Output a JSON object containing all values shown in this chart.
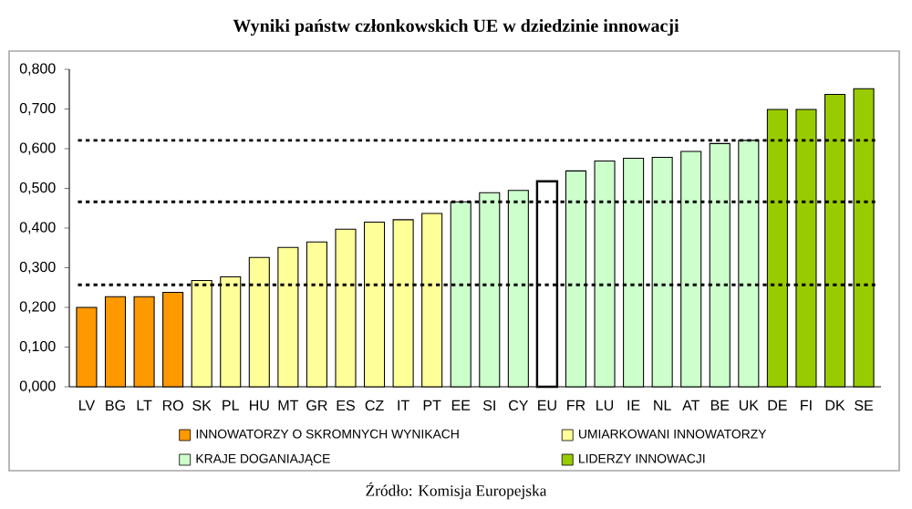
{
  "chart_data": {
    "type": "bar",
    "title": "Wyniki państw członkowskich UE w dziedzinie innowacji",
    "categories": [
      "LV",
      "BG",
      "LT",
      "RO",
      "SK",
      "PL",
      "HU",
      "MT",
      "GR",
      "ES",
      "CZ",
      "IT",
      "PT",
      "EE",
      "SI",
      "CY",
      "EU",
      "FR",
      "LU",
      "IE",
      "NL",
      "AT",
      "BE",
      "UK",
      "DE",
      "FI",
      "DK",
      "SE"
    ],
    "series": [
      {
        "name": "INNOWATORZY O SKROMNYCH WYNIKACH",
        "color": "#ff9900",
        "values": [
          0.2,
          0.227,
          0.227,
          0.238,
          null,
          null,
          null,
          null,
          null,
          null,
          null,
          null,
          null,
          null,
          null,
          null,
          null,
          null,
          null,
          null,
          null,
          null,
          null,
          null,
          null,
          null,
          null,
          null
        ]
      },
      {
        "name": "UMIARKOWANI INNOWATORZY",
        "color": "#ffff99",
        "values": [
          null,
          null,
          null,
          null,
          0.268,
          0.277,
          0.326,
          0.351,
          0.365,
          0.397,
          0.415,
          0.421,
          0.437,
          null,
          null,
          null,
          null,
          null,
          null,
          null,
          null,
          null,
          null,
          null,
          null,
          null,
          null,
          null
        ]
      },
      {
        "name": "KRAJE DOGANIAJĄCE",
        "color": "#ccffcc",
        "values": [
          null,
          null,
          null,
          null,
          null,
          null,
          null,
          null,
          null,
          null,
          null,
          null,
          null,
          0.466,
          0.489,
          0.495,
          null,
          0.544,
          0.569,
          0.576,
          0.578,
          0.593,
          0.613,
          0.621,
          null,
          null,
          null,
          null
        ]
      },
      {
        "name": "LIDERZY INNOWACJI",
        "color": "#99cc00",
        "values": [
          null,
          null,
          null,
          null,
          null,
          null,
          null,
          null,
          null,
          null,
          null,
          null,
          null,
          null,
          null,
          null,
          null,
          null,
          null,
          null,
          null,
          null,
          null,
          null,
          0.699,
          0.699,
          0.737,
          0.751
        ]
      },
      {
        "color": "#ffffff",
        "values": [
          null,
          null,
          null,
          null,
          null,
          null,
          null,
          null,
          null,
          null,
          null,
          null,
          null,
          null,
          null,
          null,
          0.518,
          null,
          null,
          null,
          null,
          null,
          null,
          null,
          null,
          null,
          null,
          null
        ]
      }
    ],
    "ylim": [
      0,
      0.8
    ],
    "yticks": [
      {
        "value": 0,
        "label": "0,000"
      },
      {
        "value": 0.1,
        "label": "0,100"
      },
      {
        "value": 0.2,
        "label": "0,200"
      },
      {
        "value": 0.3,
        "label": "0,300"
      },
      {
        "value": 0.4,
        "label": "0,400"
      },
      {
        "value": 0.5,
        "label": "0,500"
      },
      {
        "value": 0.6,
        "label": "0,600"
      },
      {
        "value": 0.7,
        "label": "0,700"
      },
      {
        "value": 0.8,
        "label": "0,800"
      }
    ],
    "ref_lines": [
      {
        "axis": "y",
        "value": 0.621,
        "color": "#000000",
        "line_style": "dotted"
      },
      {
        "axis": "y",
        "value": 0.466,
        "color": "#000000",
        "line_style": "dotted"
      },
      {
        "axis": "y",
        "value": 0.257,
        "color": "#000000",
        "line_style": "dotted"
      }
    ],
    "legend": "bottom",
    "grid": false,
    "annotations": [
      "Źródło: Komisja Europejska"
    ]
  }
}
